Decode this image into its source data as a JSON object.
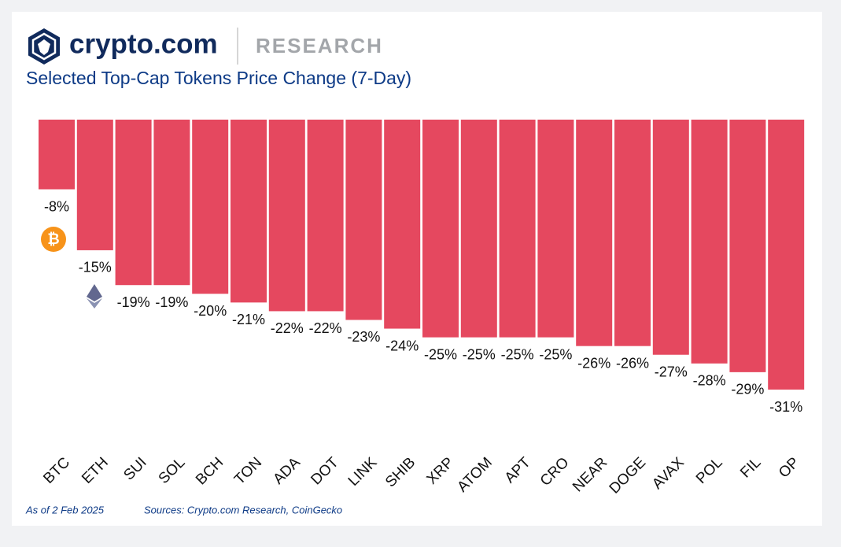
{
  "chart_data": {
    "type": "bar",
    "brand": "crypto.com",
    "section": "RESEARCH",
    "title": "Selected Top-Cap Tokens Price Change (7-Day)",
    "categories": [
      "BTC",
      "ETH",
      "SUI",
      "SOL",
      "BCH",
      "TON",
      "ADA",
      "DOT",
      "LINK",
      "SHIB",
      "XRP",
      "ATOM",
      "APT",
      "CRO",
      "NEAR",
      "DOGE",
      "AVAX",
      "POL",
      "FIL",
      "OP"
    ],
    "values": [
      -8,
      -15,
      -19,
      -19,
      -20,
      -21,
      -22,
      -22,
      -23,
      -24,
      -25,
      -25,
      -25,
      -25,
      -26,
      -26,
      -27,
      -28,
      -29,
      -31
    ],
    "value_labels": [
      "-8%",
      "-15%",
      "-19%",
      "-19%",
      "-20%",
      "-21%",
      "-22%",
      "-22%",
      "-23%",
      "-24%",
      "-25%",
      "-25%",
      "-25%",
      "-25%",
      "-26%",
      "-26%",
      "-27%",
      "-28%",
      "-29%",
      "-31%"
    ],
    "color": "#e5485f",
    "ylim": [
      -31,
      0
    ],
    "footnote_date": "As of 2 Feb 2025",
    "footnote_sources": "Sources: Crypto.com Research, CoinGecko"
  }
}
